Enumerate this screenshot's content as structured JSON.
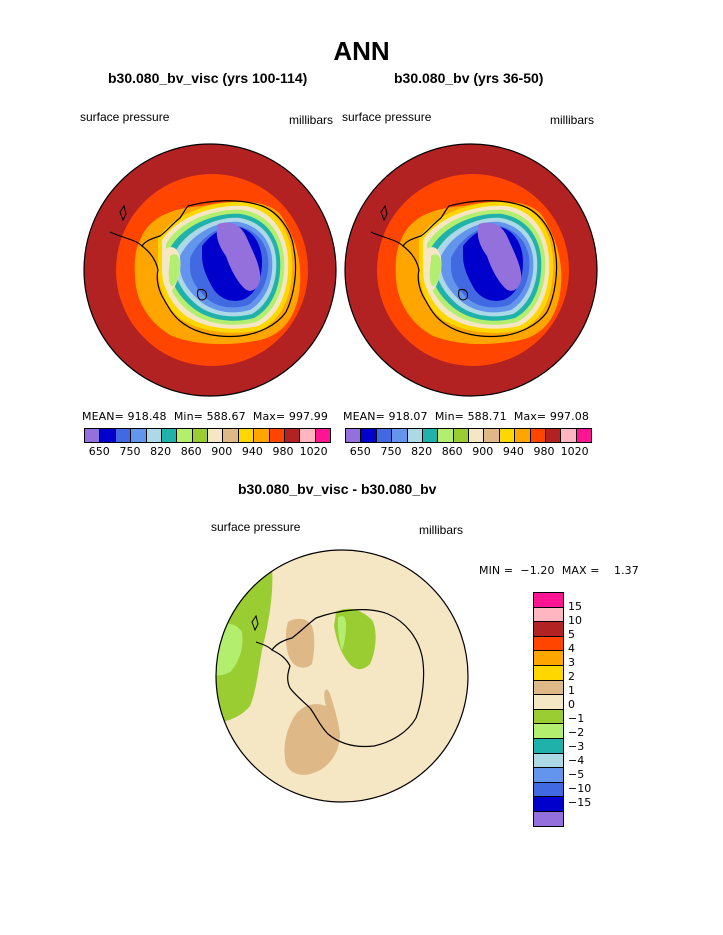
{
  "title": "ANN",
  "panels": [
    {
      "title": "b30.080_bv_visc (yrs 100-114)",
      "left_label": "surface pressure",
      "right_label": "millibars",
      "stats": {
        "mean_label": "MEAN=",
        "mean": "918.48",
        "min_label": "Min=",
        "min": "588.67",
        "max_label": "Max=",
        "max": "997.99"
      }
    },
    {
      "title": "b30.080_bv (yrs 36-50)",
      "left_label": "surface pressure",
      "right_label": "millibars",
      "stats": {
        "mean_label": "MEAN=",
        "mean": "918.07",
        "min_label": "Min=",
        "min": "588.71",
        "max_label": "Max=",
        "max": "997.08"
      }
    }
  ],
  "top_colorbar": {
    "colors": [
      "#9370db",
      "#0000cd",
      "#4169e1",
      "#6495ed",
      "#add8e6",
      "#20b2aa",
      "#b3ee6e",
      "#9acd32",
      "#f5e6c4",
      "#deb887",
      "#ffd700",
      "#ffa500",
      "#ff4500",
      "#b22222",
      "#ffb6c1",
      "#ff1493"
    ],
    "tick_labels": [
      "650",
      "750",
      "820",
      "860",
      "900",
      "940",
      "980",
      "1020"
    ]
  },
  "diff_panel": {
    "title": "b30.080_bv_visc - b30.080_bv",
    "left_label": "surface pressure",
    "right_label": "millibars",
    "stats": {
      "min_label": "MIN =",
      "min": "−1.20",
      "max_label": "MAX =",
      "max": "1.37"
    },
    "colorbar": {
      "colors": [
        "#ff1493",
        "#ffb6c1",
        "#b22222",
        "#ff4500",
        "#ffa500",
        "#ffd700",
        "#deb887",
        "#f5e6c4",
        "#9acd32",
        "#b3ee6e",
        "#20b2aa",
        "#add8e6",
        "#6495ed",
        "#4169e1",
        "#0000cd",
        "#9370db"
      ],
      "tick_labels": [
        "15",
        "10",
        "5",
        "4",
        "3",
        "2",
        "1",
        "0",
        "−1",
        "−2",
        "−3",
        "−4",
        "−5",
        "−10",
        "−15"
      ]
    }
  }
}
